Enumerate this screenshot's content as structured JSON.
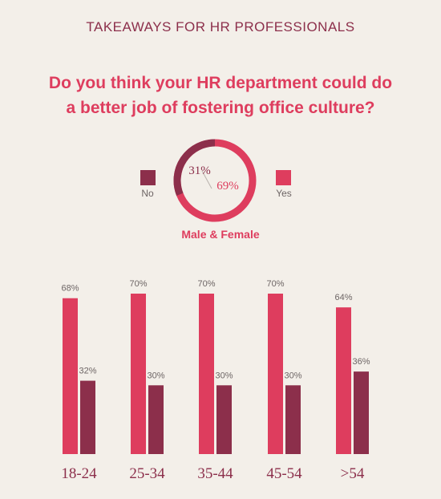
{
  "header": {
    "title": "TAKEAWAYS FOR HR PROFESSIONALS"
  },
  "question": {
    "line1": "Do you think your HR department could do",
    "line2": "a better job of fostering office culture?"
  },
  "colors": {
    "yes": "#de3d5e",
    "no": "#8c2f4b",
    "background": "#f3efe9",
    "value_label": "#6d6565"
  },
  "donut": {
    "caption": "Male & Female",
    "no": {
      "label": "No",
      "value_label": "31%",
      "value": 31
    },
    "yes": {
      "label": "Yes",
      "value_label": "69%",
      "value": 69
    }
  },
  "chart_data": [
    {
      "type": "pie",
      "title": "Male & Female",
      "categories": [
        "No",
        "Yes"
      ],
      "values": [
        31,
        69
      ]
    },
    {
      "type": "bar",
      "categories": [
        "18-24",
        "25-34",
        "35-44",
        "45-54",
        ">54"
      ],
      "series": [
        {
          "name": "Yes",
          "values": [
            68,
            70,
            70,
            70,
            64
          ],
          "labels": [
            "68%",
            "70%",
            "70%",
            "70%",
            "64%"
          ]
        },
        {
          "name": "No",
          "values": [
            32,
            30,
            30,
            30,
            36
          ],
          "labels": [
            "32%",
            "30%",
            "30%",
            "30%",
            "36%"
          ]
        }
      ],
      "ylim": [
        0,
        100
      ],
      "grid": false
    }
  ]
}
